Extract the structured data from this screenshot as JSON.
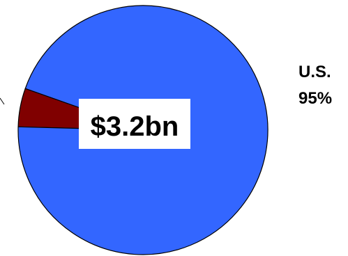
{
  "chart_data": {
    "type": "pie",
    "total_label": "$3.2bn",
    "slices": [
      {
        "name": "U.S.",
        "percent_label": "95%",
        "value": 95,
        "color": "#3366ff"
      },
      {
        "name": "",
        "percent_label": "",
        "value": 5,
        "color": "#800000"
      }
    ],
    "start_angle_deg": 181.5
  }
}
